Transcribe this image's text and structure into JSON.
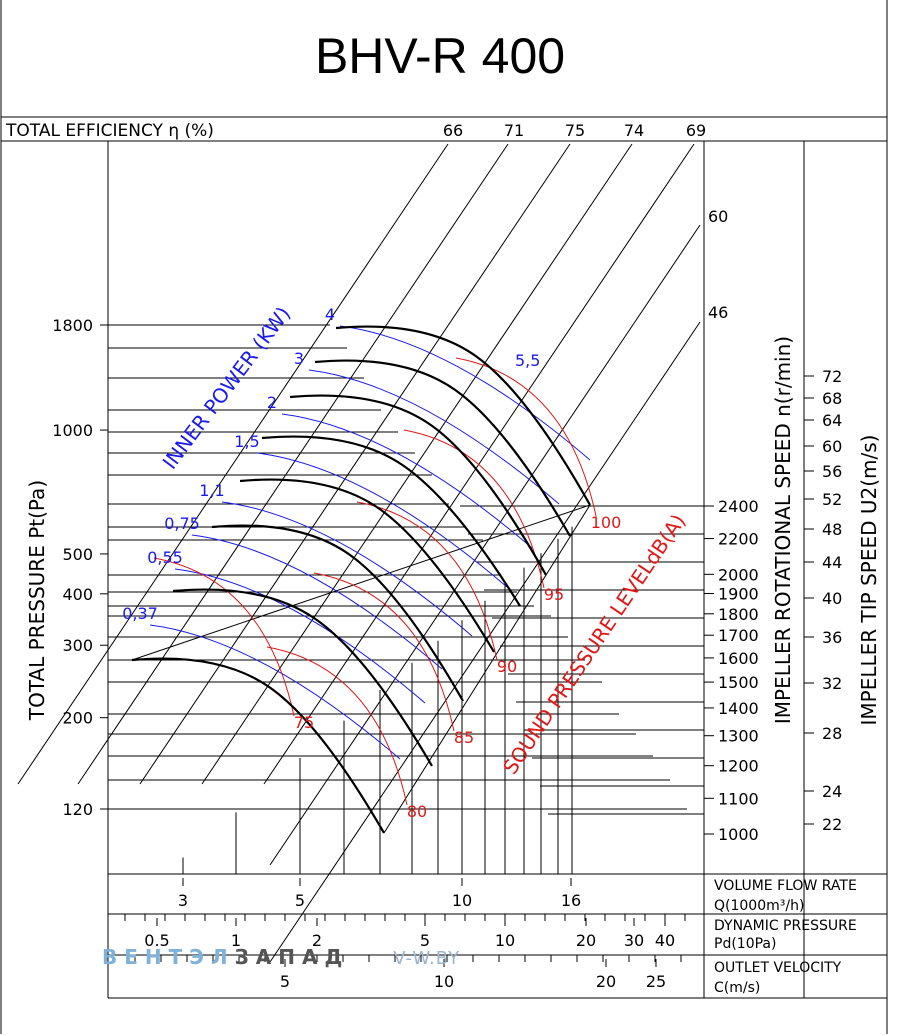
{
  "chart_data": {
    "type": "line",
    "title": "BHV-R 400",
    "colors": {
      "grid": "#000000",
      "power": "#1a1aee",
      "sound": "#e01818",
      "curve": "#000000"
    },
    "efficiency_header": {
      "label": "TOTAL EFFICIENCY η (%)",
      "values": [
        "66",
        "71",
        "75",
        "74",
        "69"
      ]
    },
    "left_axis": {
      "label": "TOTAL PRESSURE Pt(Pa)",
      "scale": "log",
      "ticks": [
        "1800",
        "1000",
        "500",
        "400",
        "300",
        "200",
        "120"
      ]
    },
    "rpm_axis": {
      "label": "IMPELLER ROTATIONAL SPEED n(r/min)",
      "ticks": [
        "2400",
        "2200",
        "2000",
        "1900",
        "1800",
        "1700",
        "1600",
        "1500",
        "1400",
        "1300",
        "1200",
        "1100",
        "1000"
      ],
      "efficiency_side_labels": [
        "60",
        "46"
      ]
    },
    "tip_axis": {
      "label": "IMPELLER TIP SPEED U2(m/s)",
      "ticks": [
        "72",
        "68",
        "64",
        "60",
        "56",
        "52",
        "48",
        "44",
        "40",
        "36",
        "32",
        "28",
        "24",
        "22"
      ]
    },
    "inner_power": {
      "label": "INNER POWER (KW)",
      "values": [
        "4",
        "3",
        "2",
        "1,5",
        "1,1",
        "0,75",
        "0,55",
        "0,37"
      ],
      "extra_label": "5,5"
    },
    "sound": {
      "label": "SOUND PRESSURE LEVELdB(A)",
      "values": [
        "100",
        "95",
        "90",
        "85",
        "80",
        "75"
      ]
    },
    "bottom_axes": [
      {
        "label": [
          "VOLUME FLOW RATE",
          "Q(1000m³/h)"
        ],
        "ticks": [
          "3",
          "5",
          "10",
          "16"
        ]
      },
      {
        "label": [
          "DYNAMIC PRESSURE",
          "Pd(10Pa)"
        ],
        "ticks": [
          "0.5",
          "1",
          "2",
          "5",
          "10",
          "20",
          "30",
          "40"
        ]
      },
      {
        "label": [
          "OUTLET VELOCITY",
          "C(m/s)"
        ],
        "ticks": [
          "5",
          "10",
          "20",
          "25"
        ]
      }
    ],
    "fan_curves_rpm": [
      2400,
      2200,
      2000,
      1800,
      1600,
      1400,
      1200,
      1000
    ]
  },
  "watermark": {
    "part1": "ВЕНТЭЛ",
    "part2": "ЗАПАД",
    "part3": "V-W.BY"
  }
}
